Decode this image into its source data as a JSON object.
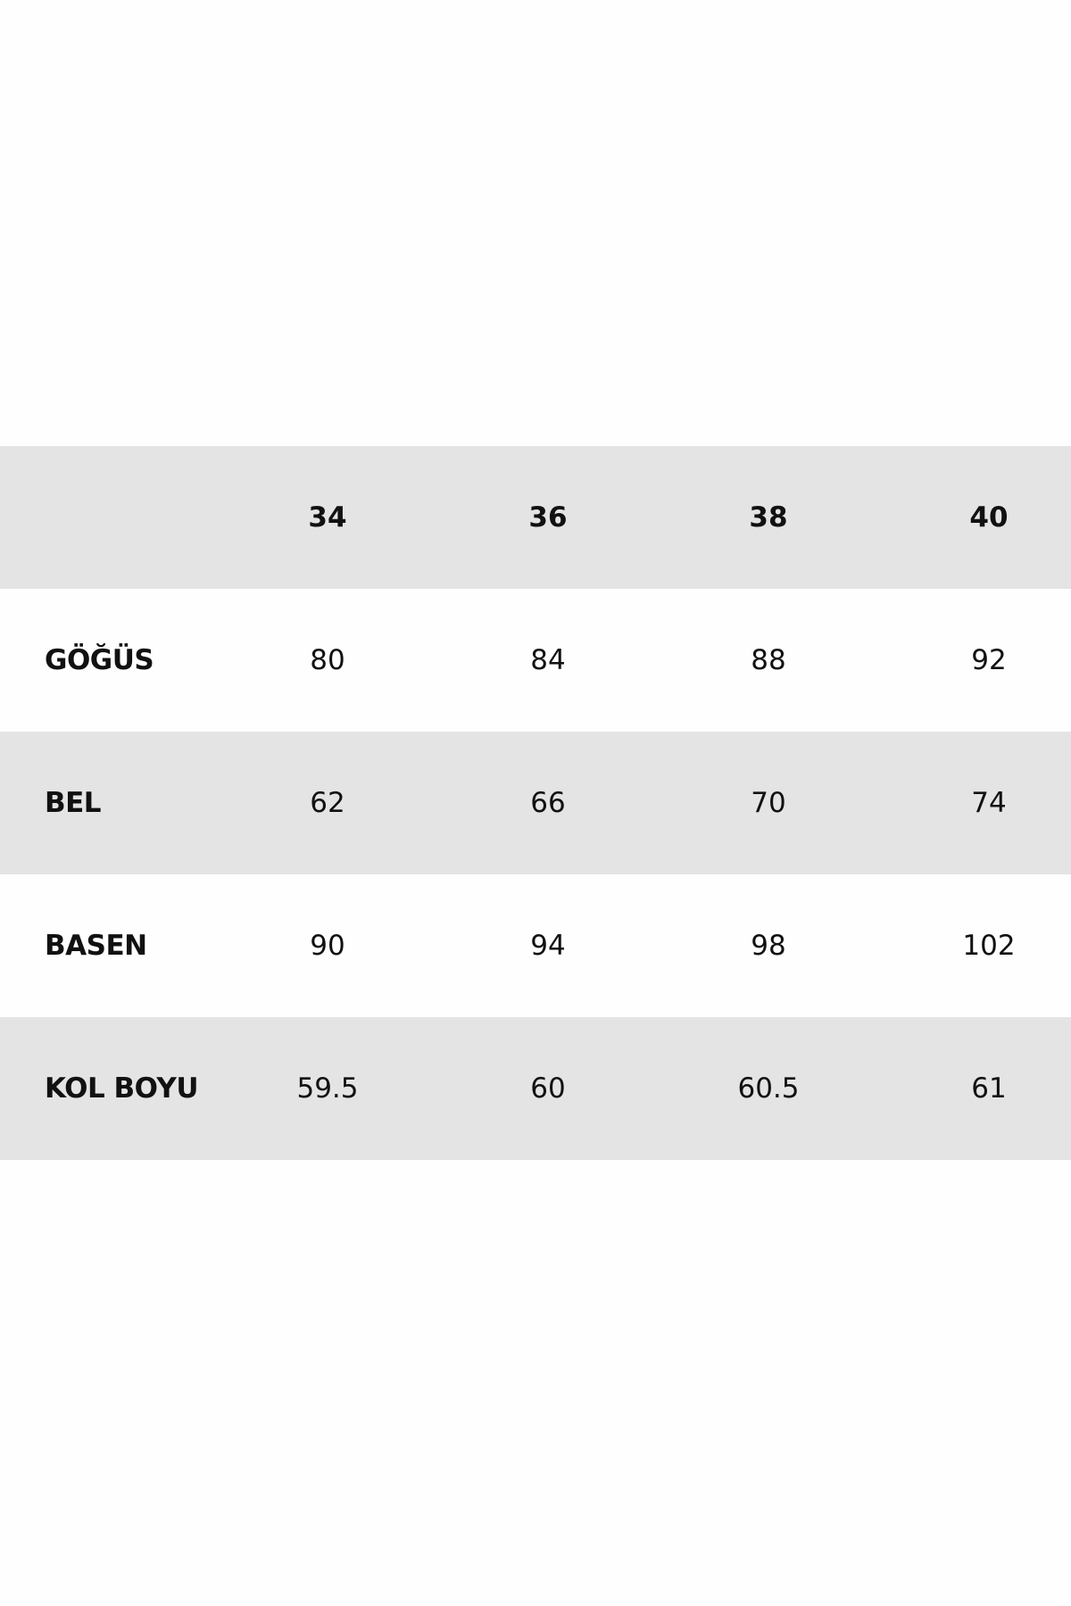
{
  "table": {
    "header": [
      34,
      36,
      38,
      40
    ],
    "rows": [
      {
        "label": "GÖĞÜS",
        "values": [
          80,
          84,
          88,
          92
        ]
      },
      {
        "label": "BEL",
        "values": [
          62,
          66,
          70,
          74
        ]
      },
      {
        "label": "BASEN",
        "values": [
          90,
          94,
          98,
          102
        ]
      },
      {
        "label": "KOL BOYU",
        "values": [
          59.5,
          60,
          60.5,
          61
        ]
      }
    ]
  }
}
